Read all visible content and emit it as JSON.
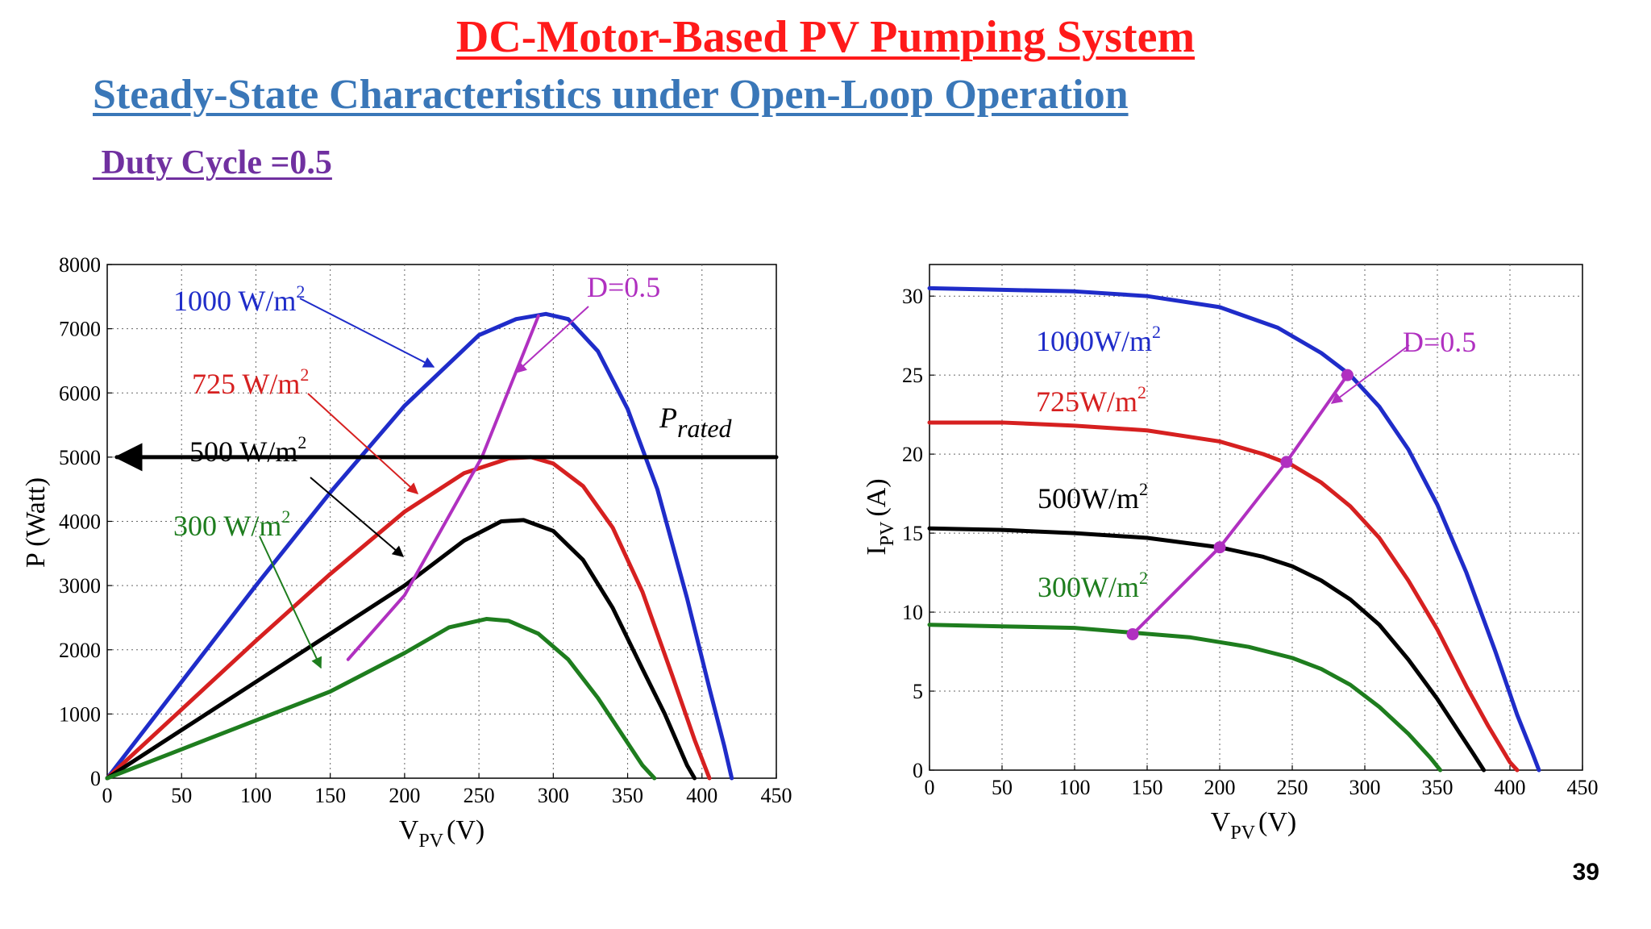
{
  "header": {
    "title": "DC-Motor-Based PV Pumping System",
    "subtitle": "Steady-State Characteristics under Open-Loop Operation",
    "duty_cycle": " Duty Cycle =0.5"
  },
  "page_number": "39",
  "colors": {
    "title": "#ff1a1a",
    "subtitle": "#3a77b8",
    "duty": "#7030a0",
    "blue": "#1f2cc9",
    "red": "#d62020",
    "black": "#000000",
    "green": "#1e7d1e",
    "magenta": "#b030c0"
  },
  "chart_data": [
    {
      "type": "line",
      "name": "P-V characteristics",
      "xlabel": "V",
      "xlabel_sub": "PV",
      "xlabel_unit": "(V)",
      "ylabel": "P (Watt)",
      "xlim": [
        0,
        450
      ],
      "ylim": [
        0,
        8000
      ],
      "xticks": [
        0,
        50,
        100,
        150,
        200,
        250,
        300,
        350,
        400,
        450
      ],
      "yticks": [
        0,
        1000,
        2000,
        3000,
        4000,
        5000,
        6000,
        7000,
        8000
      ],
      "grid": true,
      "series": [
        {
          "name": "1000 W/m2",
          "color": "blue",
          "x": [
            0,
            50,
            100,
            150,
            200,
            250,
            275,
            295,
            310,
            330,
            350,
            370,
            390,
            405,
            415,
            420,
            420
          ],
          "y": [
            0,
            1500,
            3000,
            4450,
            5800,
            6900,
            7150,
            7230,
            7150,
            6650,
            5750,
            4500,
            2800,
            1400,
            500,
            0,
            0
          ]
        },
        {
          "name": "725 W/m2",
          "color": "red",
          "x": [
            0,
            50,
            100,
            150,
            200,
            240,
            270,
            285,
            300,
            320,
            340,
            360,
            380,
            395,
            405
          ],
          "y": [
            0,
            1070,
            2140,
            3180,
            4150,
            4750,
            4980,
            5000,
            4900,
            4550,
            3900,
            2900,
            1600,
            600,
            0
          ]
        },
        {
          "name": "500 W/m2",
          "color": "black",
          "x": [
            0,
            50,
            100,
            150,
            200,
            240,
            265,
            280,
            300,
            320,
            340,
            360,
            375,
            390,
            395
          ],
          "y": [
            0,
            750,
            1500,
            2250,
            3000,
            3700,
            4000,
            4020,
            3850,
            3400,
            2650,
            1700,
            1000,
            200,
            0
          ]
        },
        {
          "name": "300 W/m2",
          "color": "green",
          "x": [
            0,
            50,
            100,
            150,
            200,
            230,
            255,
            270,
            290,
            310,
            330,
            350,
            360,
            368
          ],
          "y": [
            0,
            450,
            900,
            1350,
            1950,
            2350,
            2480,
            2450,
            2250,
            1850,
            1250,
            550,
            200,
            0
          ]
        },
        {
          "name": "D=0.5",
          "color": "magenta",
          "x": [
            162,
            200,
            252,
            290
          ],
          "y": [
            1850,
            2850,
            5000,
            7200
          ]
        },
        {
          "name": "P_rated",
          "color": "black",
          "x": [
            0,
            450
          ],
          "y": [
            5000,
            5000
          ]
        }
      ],
      "annotations": [
        {
          "text": "1000 W/m",
          "sup": "2",
          "color": "blue"
        },
        {
          "text": "725 W/m",
          "sup": "2",
          "color": "red"
        },
        {
          "text": "500 W/m",
          "sup": "2",
          "color": "black"
        },
        {
          "text": "300 W/m",
          "sup": "2",
          "color": "green"
        },
        {
          "text": "D=0.5",
          "color": "magenta"
        },
        {
          "text": "P",
          "sub": "rated",
          "color": "black"
        }
      ]
    },
    {
      "type": "line",
      "name": "I-V characteristics",
      "xlabel": "V",
      "xlabel_sub": "PV",
      "xlabel_unit": "(V)",
      "ylabel": "I",
      "ylabel_sub": "PV",
      "ylabel_unit": "(A)",
      "xlim": [
        0,
        450
      ],
      "ylim": [
        0,
        32
      ],
      "xticks": [
        0,
        50,
        100,
        150,
        200,
        250,
        300,
        350,
        400,
        450
      ],
      "yticks": [
        0,
        5,
        10,
        15,
        20,
        25,
        30
      ],
      "grid": true,
      "series": [
        {
          "name": "1000W/m2",
          "color": "blue",
          "x": [
            0,
            50,
            100,
            150,
            200,
            240,
            270,
            290,
            310,
            330,
            350,
            370,
            390,
            405,
            415,
            420
          ],
          "y": [
            30.5,
            30.4,
            30.3,
            30.0,
            29.3,
            28.0,
            26.4,
            25.0,
            23.0,
            20.3,
            16.8,
            12.5,
            7.5,
            3.5,
            1.2,
            0
          ]
        },
        {
          "name": "725W/m2",
          "color": "red",
          "x": [
            0,
            50,
            100,
            150,
            200,
            230,
            250,
            270,
            290,
            310,
            330,
            350,
            370,
            385,
            400,
            405
          ],
          "y": [
            22.0,
            22.0,
            21.8,
            21.5,
            20.8,
            20.0,
            19.3,
            18.2,
            16.7,
            14.7,
            12.0,
            8.9,
            5.3,
            2.8,
            0.5,
            0
          ]
        },
        {
          "name": "500W/m2",
          "color": "black",
          "x": [
            0,
            50,
            100,
            150,
            200,
            230,
            250,
            270,
            290,
            310,
            330,
            350,
            365,
            375,
            382
          ],
          "y": [
            15.3,
            15.2,
            15.0,
            14.7,
            14.1,
            13.5,
            12.9,
            12.0,
            10.8,
            9.2,
            7.0,
            4.5,
            2.4,
            1.0,
            0
          ]
        },
        {
          "name": "300W/m2",
          "color": "green",
          "x": [
            0,
            50,
            100,
            140,
            180,
            220,
            250,
            270,
            290,
            310,
            330,
            345,
            352
          ],
          "y": [
            9.2,
            9.1,
            9.0,
            8.7,
            8.4,
            7.8,
            7.1,
            6.4,
            5.4,
            4.0,
            2.3,
            0.8,
            0
          ]
        },
        {
          "name": "D=0.5",
          "color": "magenta",
          "x": [
            140,
            200,
            246,
            288
          ],
          "y": [
            8.6,
            14.1,
            19.5,
            25.0
          ]
        }
      ],
      "annotations": [
        {
          "text": "1000W/m",
          "sup": "2",
          "color": "blue"
        },
        {
          "text": "725W/m",
          "sup": "2",
          "color": "red"
        },
        {
          "text": "500W/m",
          "sup": "2",
          "color": "black"
        },
        {
          "text": "300W/m",
          "sup": "2",
          "color": "green"
        },
        {
          "text": "D=0.5",
          "color": "magenta"
        }
      ]
    }
  ]
}
